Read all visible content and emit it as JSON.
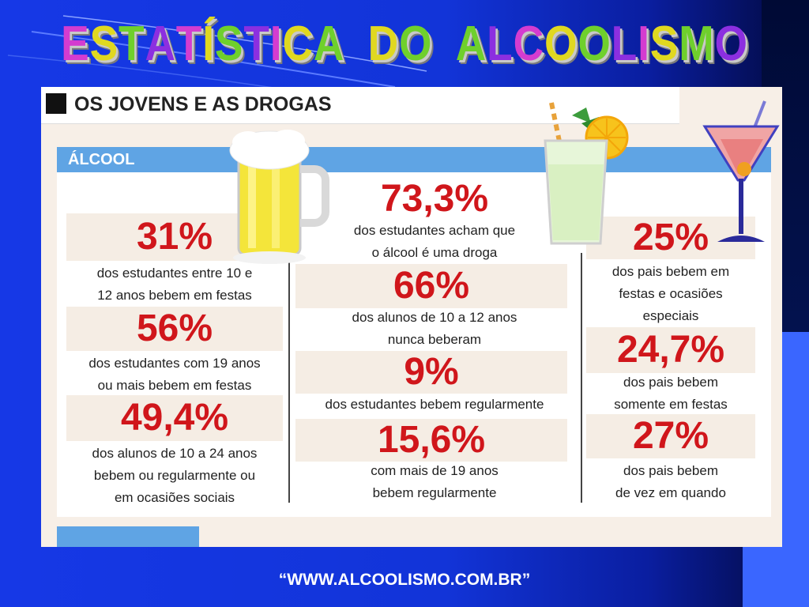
{
  "slide": {
    "title_words": [
      "ESTATÍSTICA",
      "DO",
      "ALCOOLISMO"
    ],
    "title_colors": [
      "#d43cd0",
      "#e0d820",
      "#6fd02c",
      "#8c2fe0"
    ],
    "footer": "“WWW.ALCOOLISMO.COM.BR”"
  },
  "infographic": {
    "header": "OS JOVENS E AS DROGAS",
    "section_label": "ÁLCOOL",
    "left_column": [
      {
        "value": "31%",
        "text": "dos estudantes entre 10 e\n12 anos bebem em festas"
      },
      {
        "value": "56%",
        "text": "dos estudantes com 19 anos\nou mais bebem em festas"
      },
      {
        "value": "49,4%",
        "text": "dos alunos de 10 a 24 anos\nbebem ou regularmente ou\nem ocasiões sociais"
      }
    ],
    "middle_column": [
      {
        "value": "73,3%",
        "text": "dos estudantes acham que\no álcool é uma droga"
      },
      {
        "value": "66%",
        "text": "dos alunos de 10 a 12 anos\nnunca beberam"
      },
      {
        "value": "9%",
        "text": "dos estudantes bebem regularmente"
      },
      {
        "value": "15,6%",
        "text": "com mais de 19 anos\nbebem regularmente"
      }
    ],
    "right_column": [
      {
        "value": "25%",
        "text": "dos pais bebem em\nfestas e ocasiões\nespeciais"
      },
      {
        "value": "24,7%",
        "text": "dos pais bebem\nsomente em festas"
      },
      {
        "value": "27%",
        "text": "dos pais bebem\nde vez em quando"
      }
    ],
    "icons": [
      "beer-mug-icon",
      "lemonade-glass-icon",
      "cocktail-glass-icon"
    ],
    "colors": {
      "stat_red": "#d0161b",
      "section_blue": "#5fa4e4",
      "box_beige": "#f5ede4"
    }
  }
}
